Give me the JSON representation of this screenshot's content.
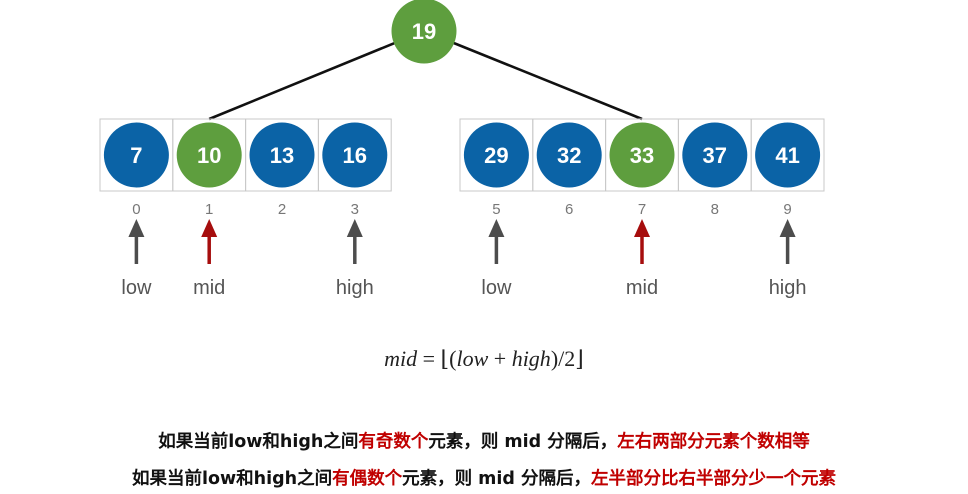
{
  "tree": {
    "root": {
      "value": "19",
      "color": "green"
    },
    "groups": [
      {
        "nodes": [
          {
            "value": "7",
            "index": "0",
            "color": "blue"
          },
          {
            "value": "10",
            "index": "1",
            "color": "green"
          },
          {
            "value": "13",
            "index": "2",
            "color": "blue"
          },
          {
            "value": "16",
            "index": "3",
            "color": "blue"
          }
        ],
        "pointers": [
          {
            "label": "low",
            "at_index": "0",
            "type": "bound"
          },
          {
            "label": "mid",
            "at_index": "1",
            "type": "mid"
          },
          {
            "label": "high",
            "at_index": "3",
            "type": "bound"
          }
        ]
      },
      {
        "nodes": [
          {
            "value": "29",
            "index": "5",
            "color": "blue"
          },
          {
            "value": "32",
            "index": "6",
            "color": "blue"
          },
          {
            "value": "33",
            "index": "7",
            "color": "green"
          },
          {
            "value": "37",
            "index": "8",
            "color": "blue"
          },
          {
            "value": "41",
            "index": "9",
            "color": "blue"
          }
        ],
        "pointers": [
          {
            "label": "low",
            "at_index": "5",
            "type": "bound"
          },
          {
            "label": "mid",
            "at_index": "7",
            "type": "mid"
          },
          {
            "label": "high",
            "at_index": "9",
            "type": "bound"
          }
        ]
      }
    ]
  },
  "formula": {
    "lhs": "mid",
    "eq": " = ",
    "lfloor": "⌊",
    "open": "(",
    "low": "low",
    "plus": " + ",
    "high": "high",
    "close": ")/2",
    "rfloor": "⌋"
  },
  "notes": {
    "line1": {
      "a": "如果当前low和high之间",
      "b": "有奇数个",
      "c": "元素，则 mid 分隔后，",
      "d": "左右两部分元素个数相等"
    },
    "line2": {
      "a": "如果当前low和high之间",
      "b": "有偶数个",
      "c": "元素，则 mid 分隔后，",
      "d": "左半部分比右半部分少一个元素"
    }
  },
  "colors": {
    "blue": "#0b63a6",
    "green": "#5e9e3e",
    "mid_arrow": "#a60d0d",
    "bound_arrow": "#4d4d4d",
    "cell_border": "#c8c8c8",
    "edge": "#111111",
    "index_text": "#777777",
    "label_text": "#555555",
    "accent_text": "#c00000"
  }
}
